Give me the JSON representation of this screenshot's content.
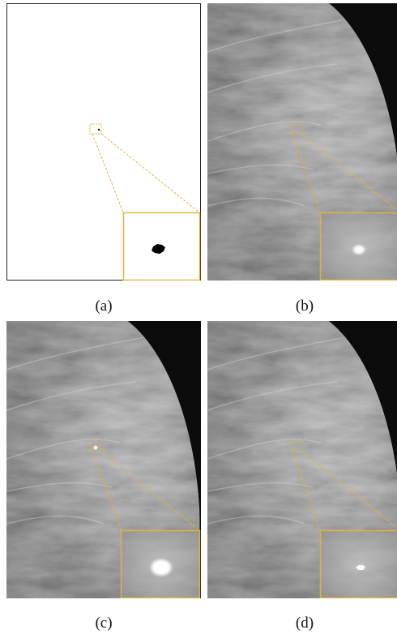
{
  "figure": {
    "panels": [
      {
        "id": "a",
        "label": "(a)",
        "kind": "binary-mask"
      },
      {
        "id": "b",
        "label": "(b)",
        "kind": "mammogram-original"
      },
      {
        "id": "c",
        "label": "(c)",
        "kind": "mammogram-synthetic-large-lesion"
      },
      {
        "id": "d",
        "label": "(d)",
        "kind": "mammogram-synthetic-small-lesion"
      }
    ],
    "colors": {
      "zoom_frame": "#e0b23a",
      "mask_background": "#ffffff",
      "mask_lesion": "#000000",
      "tissue_dark": "#0c0c0c",
      "tissue_light": "#b8b8b8"
    }
  }
}
